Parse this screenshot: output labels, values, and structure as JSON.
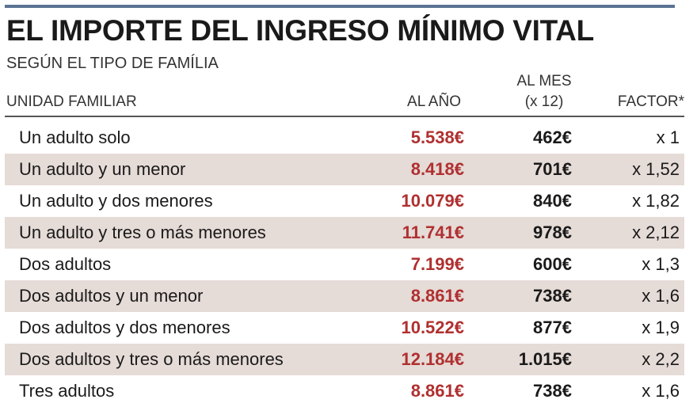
{
  "title": "EL IMPORTE DEL INGRESO MÍNIMO VITAL",
  "subtitle": "SEGÚN EL TIPO DE FAMÍLIA",
  "headers": {
    "unidad": "UNIDAD FAMILIAR",
    "anio": "AL AÑO",
    "mes_line1": "AL MES",
    "mes_line2": "(x 12)",
    "factor": "FACTOR*"
  },
  "colors": {
    "accent_rule": "#5b7393",
    "year_value": "#b03030",
    "row_shade": "#e5dbd7"
  },
  "rows": [
    {
      "name": "Un adulto solo",
      "anio": "5.538€",
      "mes": "462€",
      "factor": "x 1"
    },
    {
      "name": "Un adulto y un menor",
      "anio": "8.418€",
      "mes": "701€",
      "factor": "x 1,52"
    },
    {
      "name": "Un adulto y dos menores",
      "anio": "10.079€",
      "mes": "840€",
      "factor": "x 1,82"
    },
    {
      "name": "Un adulto y tres o más menores",
      "anio": "11.741€",
      "mes": "978€",
      "factor": "x 2,12"
    },
    {
      "name": "Dos adultos",
      "anio": "7.199€",
      "mes": "600€",
      "factor": "x 1,3"
    },
    {
      "name": "Dos adultos y un menor",
      "anio": "8.861€",
      "mes": "738€",
      "factor": "x 1,6"
    },
    {
      "name": "Dos adultos y dos menores",
      "anio": "10.522€",
      "mes": "877€",
      "factor": "x 1,9"
    },
    {
      "name": "Dos adultos y tres o más menores",
      "anio": "12.184€",
      "mes": "1.015€",
      "factor": "x 2,2"
    },
    {
      "name": "Tres adultos",
      "anio": "8.861€",
      "mes": "738€",
      "factor": "x 1,6"
    }
  ]
}
